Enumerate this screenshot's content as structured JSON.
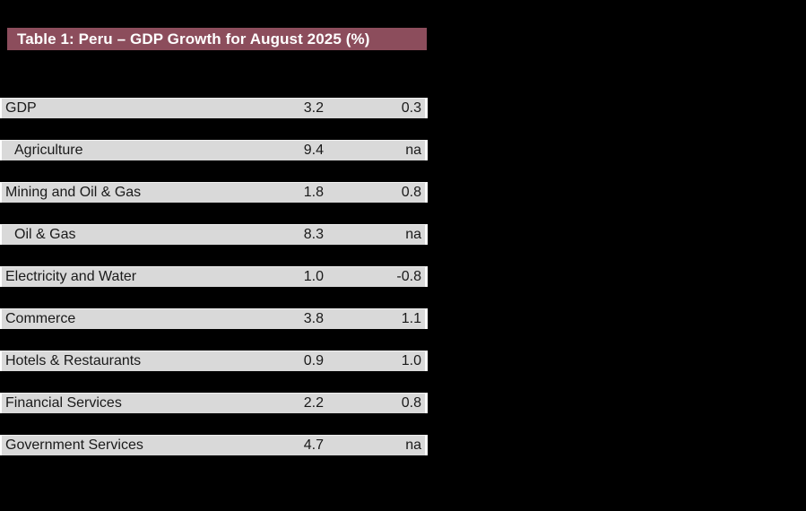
{
  "colors": {
    "background": "#000000",
    "title_bar_bg": "#8C4D5C",
    "title_text": "#FFFFFF",
    "row_bg": "#D9D9D9",
    "row_text": "#1A1A1A"
  },
  "chart_data": {
    "type": "table",
    "title": "Table 1: Peru – GDP Growth for August 2025 (%)",
    "columns": [
      "sector",
      "value_col_1",
      "value_col_2"
    ],
    "rows": [
      {
        "label": "GDP",
        "indent": false,
        "values": [
          "3.2",
          "0.3"
        ]
      },
      {
        "label": "Agriculture",
        "indent": true,
        "values": [
          "9.4",
          "na"
        ]
      },
      {
        "label": "Mining and Oil & Gas",
        "indent": false,
        "values": [
          "1.8",
          "0.8"
        ]
      },
      {
        "label": "Oil & Gas",
        "indent": true,
        "values": [
          "8.3",
          "na"
        ]
      },
      {
        "label": "Electricity and Water",
        "indent": false,
        "values": [
          "1.0",
          "-0.8"
        ]
      },
      {
        "label": "Commerce",
        "indent": false,
        "values": [
          "3.8",
          "1.1"
        ]
      },
      {
        "label": "Hotels & Restaurants",
        "indent": false,
        "values": [
          "0.9",
          "1.0"
        ]
      },
      {
        "label": "Financial Services",
        "indent": false,
        "values": [
          "2.2",
          "0.8"
        ]
      },
      {
        "label": "Government Services",
        "indent": false,
        "values": [
          "4.7",
          "na"
        ]
      }
    ]
  }
}
